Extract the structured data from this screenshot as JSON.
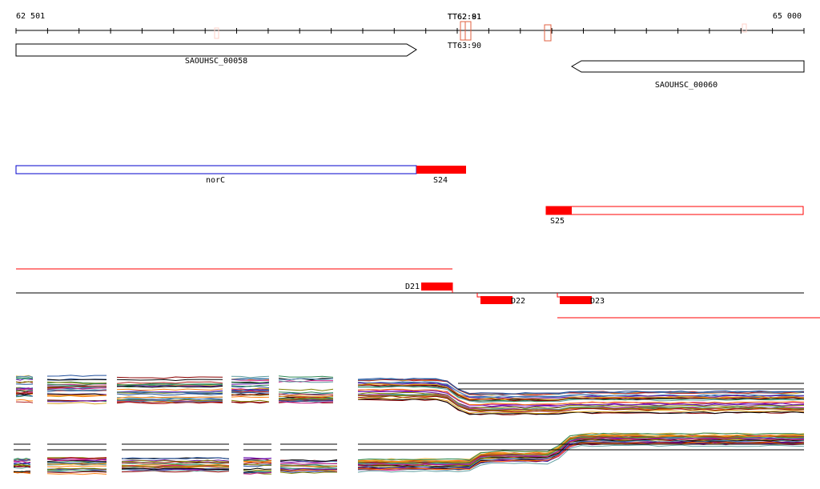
{
  "ruler": {
    "start_label": "62 501",
    "end_label": "65 000"
  },
  "terminators": [
    {
      "label_top_a": "TT62:81",
      "label_top_b": "TT62:91",
      "label_below": "TT63:90"
    }
  ],
  "genes": [
    {
      "name": "SAOUHSC_00058",
      "strand": "+"
    },
    {
      "name": "SAOUHSC_00060",
      "strand": "-"
    }
  ],
  "features": [
    {
      "label": "norC",
      "type": "operon-blue"
    },
    {
      "label": "S24",
      "type": "segment-red"
    },
    {
      "label": "S25",
      "type": "segment-red"
    },
    {
      "label": "D21",
      "type": "segment-red"
    },
    {
      "label": "D22",
      "type": "segment-red"
    },
    {
      "label": "D23",
      "type": "segment-red"
    }
  ],
  "colors": {
    "axis": "#000000",
    "operon_outline": "#0000cc",
    "segment_fill": "#ff0000",
    "terminator_outline": "#e06040",
    "marker_outline": "#ffb0a0"
  },
  "expression_profiles": {
    "track_count": 2,
    "line_colors": [
      "#1f4e9c",
      "#2e8b57",
      "#8b0000",
      "#daa520",
      "#6a0dad",
      "#ff7f0e",
      "#000000",
      "#5f9ea0",
      "#c71585",
      "#808000",
      "#b22222",
      "#4682b4"
    ]
  }
}
